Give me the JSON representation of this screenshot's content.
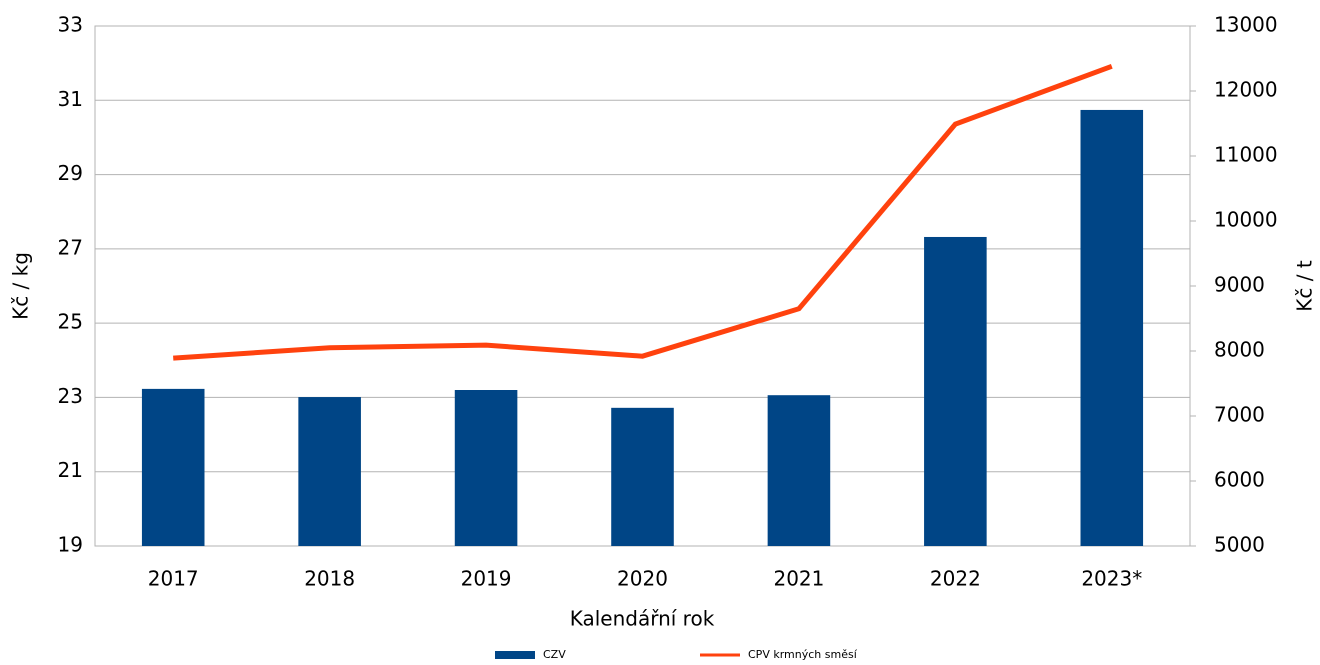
{
  "chart_data": {
    "type": "bar",
    "categories": [
      "2017",
      "2018",
      "2019",
      "2020",
      "2021",
      "2022",
      "2023*"
    ],
    "series": [
      {
        "name": "CZV",
        "type": "bar",
        "color": "#004586",
        "values": [
          23.23,
          23.01,
          23.2,
          22.72,
          23.06,
          27.32,
          30.74
        ]
      },
      {
        "name": "CPV krmných směsí",
        "type": "line",
        "axis": "y2",
        "color": "#ff420e",
        "values": [
          7890,
          8050,
          8090,
          7920,
          8650,
          11490,
          12380
        ]
      }
    ],
    "ylim": [
      19,
      33
    ],
    "yticks": [
      19,
      21,
      23,
      25,
      27,
      29,
      31,
      33
    ],
    "y2lim": [
      5000,
      13000
    ],
    "y2ticks": [
      5000,
      6000,
      7000,
      8000,
      9000,
      10000,
      11000,
      12000,
      13000
    ],
    "ylabel": "Kč / kg",
    "y2label": "Kč / t",
    "xlabel": "Kalendářní rok",
    "grid": true,
    "legend": "bottom"
  }
}
